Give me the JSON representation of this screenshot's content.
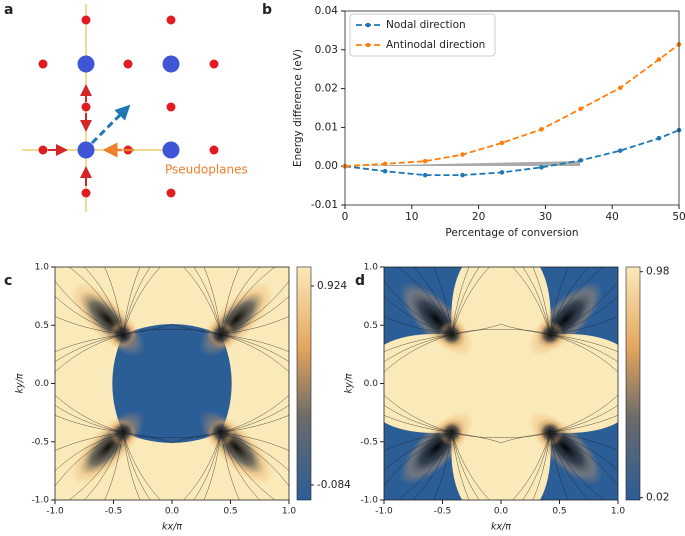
{
  "diagram": {
    "panel": "a",
    "label": "Pseudoplanes"
  },
  "chart_data": [
    {
      "type": "line",
      "panel": "b",
      "x_label": "Percentage of conversion",
      "y_label": "Energy difference (eV)",
      "x": [
        0,
        6,
        12,
        17.6,
        23.5,
        29.4,
        35.3,
        41.2,
        47,
        50
      ],
      "series": [
        {
          "name": "Nodal direction",
          "color": "#1f77b4",
          "values": [
            0,
            -0.0013,
            -0.0023,
            -0.0023,
            -0.0016,
            -0.0003,
            0.0015,
            0.004,
            0.0072,
            0.0093
          ]
        },
        {
          "name": "Antinodal direction",
          "color": "#ff7f0e",
          "values": [
            0,
            0.0006,
            0.0013,
            0.003,
            0.006,
            0.0095,
            0.0148,
            0.0202,
            0.0275,
            0.0314
          ]
        }
      ],
      "xlim": [
        0,
        50
      ],
      "xticks": [
        0,
        10,
        20,
        30,
        40,
        50
      ],
      "ylim": [
        -0.01,
        0.04
      ],
      "yticks": [
        -0.01,
        {
          "value": 0,
          "label": "0.00"
        },
        0.01,
        0.02,
        0.03,
        0.04
      ],
      "legend": "upper left"
    },
    {
      "type": "heatmap",
      "panel": "c",
      "x_label": "kx/π",
      "y_label": "ky/π",
      "xlim": [
        -1,
        1
      ],
      "ylim": [
        -1,
        1
      ],
      "xticks": [
        {
          "value": -1,
          "label": "-1.0"
        },
        -0.5,
        {
          "value": 0,
          "label": "0.0"
        },
        0.5,
        {
          "value": 1,
          "label": "1.0"
        }
      ],
      "yticks": [
        {
          "value": -1,
          "label": "-1.0"
        },
        -0.5,
        {
          "value": 0,
          "label": "0.0"
        },
        0.5,
        {
          "value": 1,
          "label": "1.0"
        }
      ],
      "zlim": [
        -0.16,
        1.02
      ],
      "zticks": [
        -0.084,
        0.924
      ],
      "colormap": [
        "#2b5d97",
        "#3a3a3a",
        "#e3a45e",
        "#fbeab9"
      ]
    },
    {
      "type": "heatmap",
      "panel": "d",
      "x_label": "kx/π",
      "y_label": "ky/π",
      "xlim": [
        -1,
        1
      ],
      "ylim": [
        -1,
        1
      ],
      "xticks": [
        {
          "value": -1,
          "label": "-1.0"
        },
        -0.5,
        {
          "value": 0,
          "label": "0.0"
        },
        0.5,
        {
          "value": 1,
          "label": "1.0"
        }
      ],
      "yticks": [
        {
          "value": -1,
          "label": "-1.0"
        },
        -0.5,
        {
          "value": 0,
          "label": "0.0"
        },
        0.5,
        {
          "value": 1,
          "label": "1.0"
        }
      ],
      "zlim": [
        0.01,
        1.0
      ],
      "zticks": [
        0.02,
        0.98
      ],
      "colormap": [
        "#2b5d97",
        "#3a3a3a",
        "#e3a45e",
        "#fbeab9"
      ]
    }
  ]
}
